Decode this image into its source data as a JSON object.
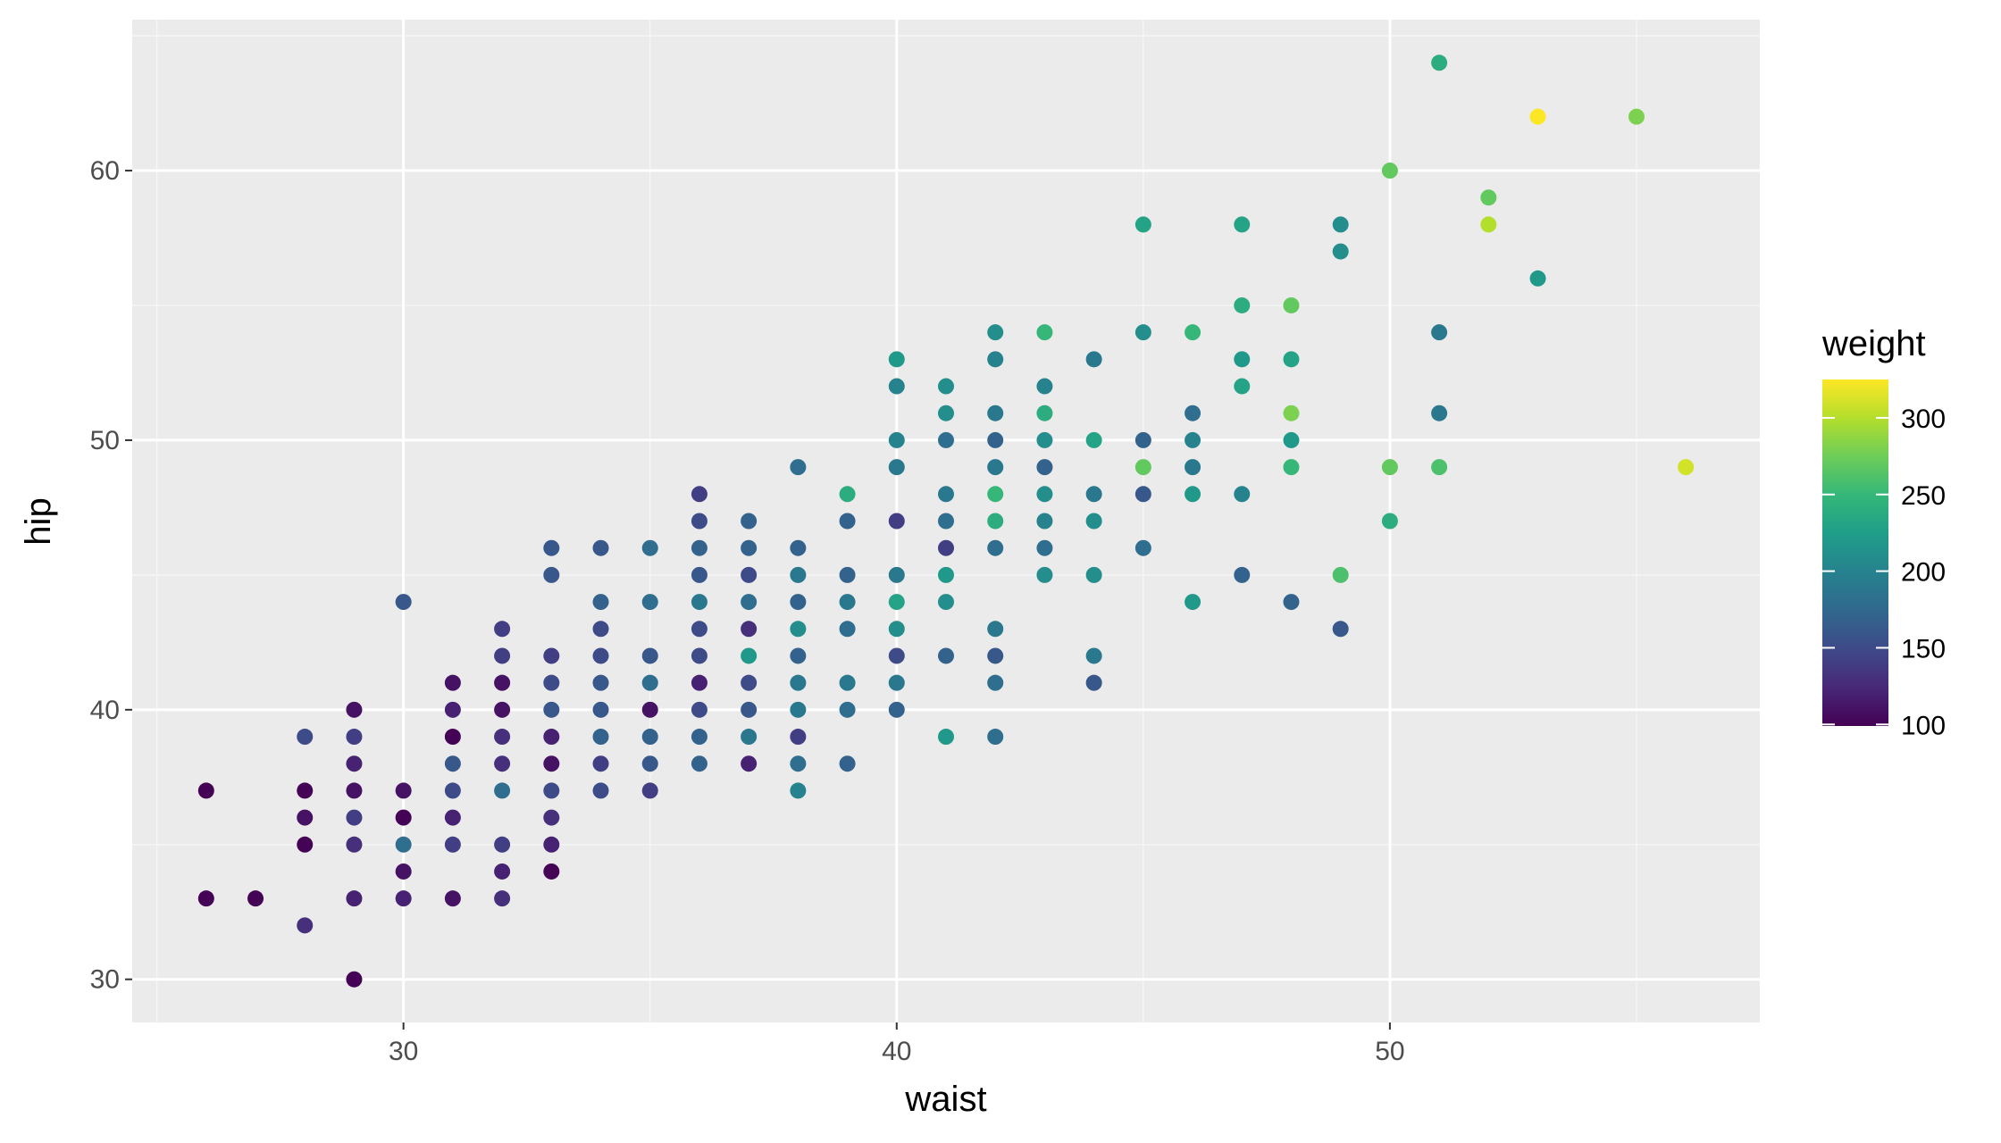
{
  "chart_data": {
    "type": "scatter",
    "title": "",
    "xlabel": "waist",
    "ylabel": "hip",
    "xlim": [
      24.5,
      57.5
    ],
    "ylim": [
      28.4,
      65.6
    ],
    "x_ticks": [
      30,
      40,
      50
    ],
    "y_ticks": [
      30,
      40,
      50,
      60
    ],
    "x_tick_labels": [
      "30",
      "40",
      "50"
    ],
    "y_tick_labels": [
      "30",
      "40",
      "50",
      "60"
    ],
    "grid": true,
    "legend": {
      "title": "weight",
      "placement": "right",
      "type": "colorbar",
      "range": [
        99,
        325
      ],
      "breaks": [
        100,
        150,
        200,
        250,
        300
      ],
      "break_labels": [
        "100",
        "150",
        "200",
        "250",
        "300"
      ],
      "palette": [
        "#440154",
        "#482878",
        "#3E4A89",
        "#31688E",
        "#26828E",
        "#1F9E89",
        "#35B779",
        "#6DCD59",
        "#B4DE2C",
        "#FDE725"
      ]
    },
    "colors": {
      "panel_background": "#EBEBEB",
      "grid_major": "#FFFFFF",
      "grid_minor": "#F5F5F5"
    },
    "points": [
      [
        26,
        37,
        100
      ],
      [
        26,
        33,
        100
      ],
      [
        27,
        33,
        100
      ],
      [
        28,
        39,
        150
      ],
      [
        28,
        37,
        100
      ],
      [
        28,
        36,
        110
      ],
      [
        28,
        35,
        100
      ],
      [
        28,
        32,
        130
      ],
      [
        29,
        40,
        110
      ],
      [
        29,
        39,
        140
      ],
      [
        29,
        38,
        120
      ],
      [
        29,
        37,
        110
      ],
      [
        29,
        36,
        140
      ],
      [
        29,
        35,
        130
      ],
      [
        29,
        33,
        120
      ],
      [
        29,
        30,
        100
      ],
      [
        30,
        44,
        160
      ],
      [
        30,
        37,
        110
      ],
      [
        30,
        36,
        100
      ],
      [
        30,
        35,
        180
      ],
      [
        30,
        34,
        110
      ],
      [
        30,
        33,
        120
      ],
      [
        31,
        41,
        110
      ],
      [
        31,
        40,
        120
      ],
      [
        31,
        39,
        100
      ],
      [
        31,
        38,
        160
      ],
      [
        31,
        37,
        150
      ],
      [
        31,
        36,
        120
      ],
      [
        31,
        35,
        140
      ],
      [
        31,
        33,
        110
      ],
      [
        32,
        43,
        140
      ],
      [
        32,
        42,
        140
      ],
      [
        32,
        41,
        110
      ],
      [
        32,
        40,
        110
      ],
      [
        32,
        39,
        130
      ],
      [
        32,
        38,
        130
      ],
      [
        32,
        37,
        180
      ],
      [
        32,
        35,
        140
      ],
      [
        32,
        34,
        120
      ],
      [
        32,
        33,
        130
      ],
      [
        33,
        46,
        160
      ],
      [
        33,
        45,
        160
      ],
      [
        33,
        42,
        140
      ],
      [
        33,
        41,
        150
      ],
      [
        33,
        40,
        160
      ],
      [
        33,
        39,
        120
      ],
      [
        33,
        38,
        110
      ],
      [
        33,
        37,
        150
      ],
      [
        33,
        36,
        130
      ],
      [
        33,
        35,
        120
      ],
      [
        33,
        34,
        100
      ],
      [
        34,
        46,
        160
      ],
      [
        34,
        44,
        170
      ],
      [
        34,
        43,
        150
      ],
      [
        34,
        42,
        150
      ],
      [
        34,
        41,
        160
      ],
      [
        34,
        40,
        160
      ],
      [
        34,
        39,
        170
      ],
      [
        34,
        38,
        140
      ],
      [
        34,
        37,
        150
      ],
      [
        35,
        46,
        180
      ],
      [
        35,
        44,
        180
      ],
      [
        35,
        42,
        160
      ],
      [
        35,
        41,
        180
      ],
      [
        35,
        40,
        110
      ],
      [
        35,
        39,
        170
      ],
      [
        35,
        38,
        160
      ],
      [
        35,
        37,
        140
      ],
      [
        36,
        48,
        140
      ],
      [
        36,
        47,
        150
      ],
      [
        36,
        46,
        170
      ],
      [
        36,
        45,
        160
      ],
      [
        36,
        44,
        190
      ],
      [
        36,
        43,
        150
      ],
      [
        36,
        42,
        150
      ],
      [
        36,
        41,
        120
      ],
      [
        36,
        40,
        150
      ],
      [
        36,
        39,
        170
      ],
      [
        36,
        38,
        170
      ],
      [
        37,
        47,
        170
      ],
      [
        37,
        46,
        170
      ],
      [
        37,
        45,
        150
      ],
      [
        37,
        44,
        180
      ],
      [
        37,
        43,
        130
      ],
      [
        37,
        42,
        220
      ],
      [
        37,
        41,
        150
      ],
      [
        37,
        40,
        160
      ],
      [
        37,
        39,
        190
      ],
      [
        37,
        38,
        120
      ],
      [
        38,
        49,
        180
      ],
      [
        38,
        46,
        170
      ],
      [
        38,
        45,
        190
      ],
      [
        38,
        44,
        170
      ],
      [
        38,
        43,
        210
      ],
      [
        38,
        42,
        170
      ],
      [
        38,
        41,
        190
      ],
      [
        38,
        40,
        190
      ],
      [
        38,
        39,
        140
      ],
      [
        38,
        38,
        180
      ],
      [
        38,
        37,
        200
      ],
      [
        39,
        48,
        240
      ],
      [
        39,
        47,
        170
      ],
      [
        39,
        45,
        170
      ],
      [
        39,
        44,
        190
      ],
      [
        39,
        43,
        180
      ],
      [
        39,
        41,
        190
      ],
      [
        39,
        40,
        180
      ],
      [
        39,
        38,
        170
      ],
      [
        40,
        53,
        220
      ],
      [
        40,
        52,
        200
      ],
      [
        40,
        50,
        200
      ],
      [
        40,
        49,
        190
      ],
      [
        40,
        47,
        140
      ],
      [
        40,
        45,
        190
      ],
      [
        40,
        44,
        230
      ],
      [
        40,
        43,
        210
      ],
      [
        40,
        42,
        150
      ],
      [
        40,
        41,
        190
      ],
      [
        40,
        40,
        170
      ],
      [
        41,
        52,
        210
      ],
      [
        41,
        51,
        210
      ],
      [
        41,
        50,
        180
      ],
      [
        41,
        48,
        190
      ],
      [
        41,
        47,
        180
      ],
      [
        41,
        46,
        140
      ],
      [
        41,
        45,
        220
      ],
      [
        41,
        44,
        210
      ],
      [
        41,
        42,
        170
      ],
      [
        41,
        39,
        220
      ],
      [
        42,
        54,
        210
      ],
      [
        42,
        53,
        200
      ],
      [
        42,
        51,
        190
      ],
      [
        42,
        50,
        170
      ],
      [
        42,
        49,
        190
      ],
      [
        42,
        48,
        250
      ],
      [
        42,
        47,
        240
      ],
      [
        42,
        46,
        180
      ],
      [
        42,
        43,
        190
      ],
      [
        42,
        42,
        160
      ],
      [
        42,
        41,
        180
      ],
      [
        42,
        39,
        180
      ],
      [
        43,
        54,
        250
      ],
      [
        43,
        52,
        200
      ],
      [
        43,
        51,
        240
      ],
      [
        43,
        50,
        210
      ],
      [
        43,
        49,
        170
      ],
      [
        43,
        48,
        210
      ],
      [
        43,
        47,
        200
      ],
      [
        43,
        46,
        180
      ],
      [
        43,
        45,
        210
      ],
      [
        44,
        53,
        190
      ],
      [
        44,
        50,
        230
      ],
      [
        44,
        48,
        190
      ],
      [
        44,
        47,
        210
      ],
      [
        44,
        45,
        210
      ],
      [
        44,
        42,
        190
      ],
      [
        44,
        41,
        160
      ],
      [
        45,
        58,
        230
      ],
      [
        45,
        54,
        210
      ],
      [
        45,
        50,
        170
      ],
      [
        45,
        49,
        270
      ],
      [
        45,
        48,
        160
      ],
      [
        45,
        46,
        180
      ],
      [
        46,
        54,
        250
      ],
      [
        46,
        51,
        180
      ],
      [
        46,
        50,
        200
      ],
      [
        46,
        49,
        190
      ],
      [
        46,
        48,
        220
      ],
      [
        46,
        44,
        220
      ],
      [
        47,
        58,
        230
      ],
      [
        47,
        55,
        240
      ],
      [
        47,
        53,
        220
      ],
      [
        47,
        52,
        230
      ],
      [
        47,
        48,
        200
      ],
      [
        47,
        45,
        170
      ],
      [
        48,
        55,
        270
      ],
      [
        48,
        53,
        230
      ],
      [
        48,
        51,
        280
      ],
      [
        48,
        50,
        220
      ],
      [
        48,
        49,
        250
      ],
      [
        48,
        44,
        170
      ],
      [
        49,
        58,
        210
      ],
      [
        49,
        57,
        210
      ],
      [
        49,
        45,
        260
      ],
      [
        49,
        43,
        160
      ],
      [
        50,
        60,
        270
      ],
      [
        50,
        49,
        270
      ],
      [
        50,
        47,
        240
      ],
      [
        51,
        64,
        240
      ],
      [
        51,
        54,
        190
      ],
      [
        51,
        51,
        190
      ],
      [
        51,
        49,
        260
      ],
      [
        52,
        59,
        270
      ],
      [
        52,
        58,
        300
      ],
      [
        53,
        62,
        325
      ],
      [
        53,
        56,
        220
      ],
      [
        55,
        62,
        280
      ],
      [
        56,
        49,
        310
      ]
    ]
  }
}
